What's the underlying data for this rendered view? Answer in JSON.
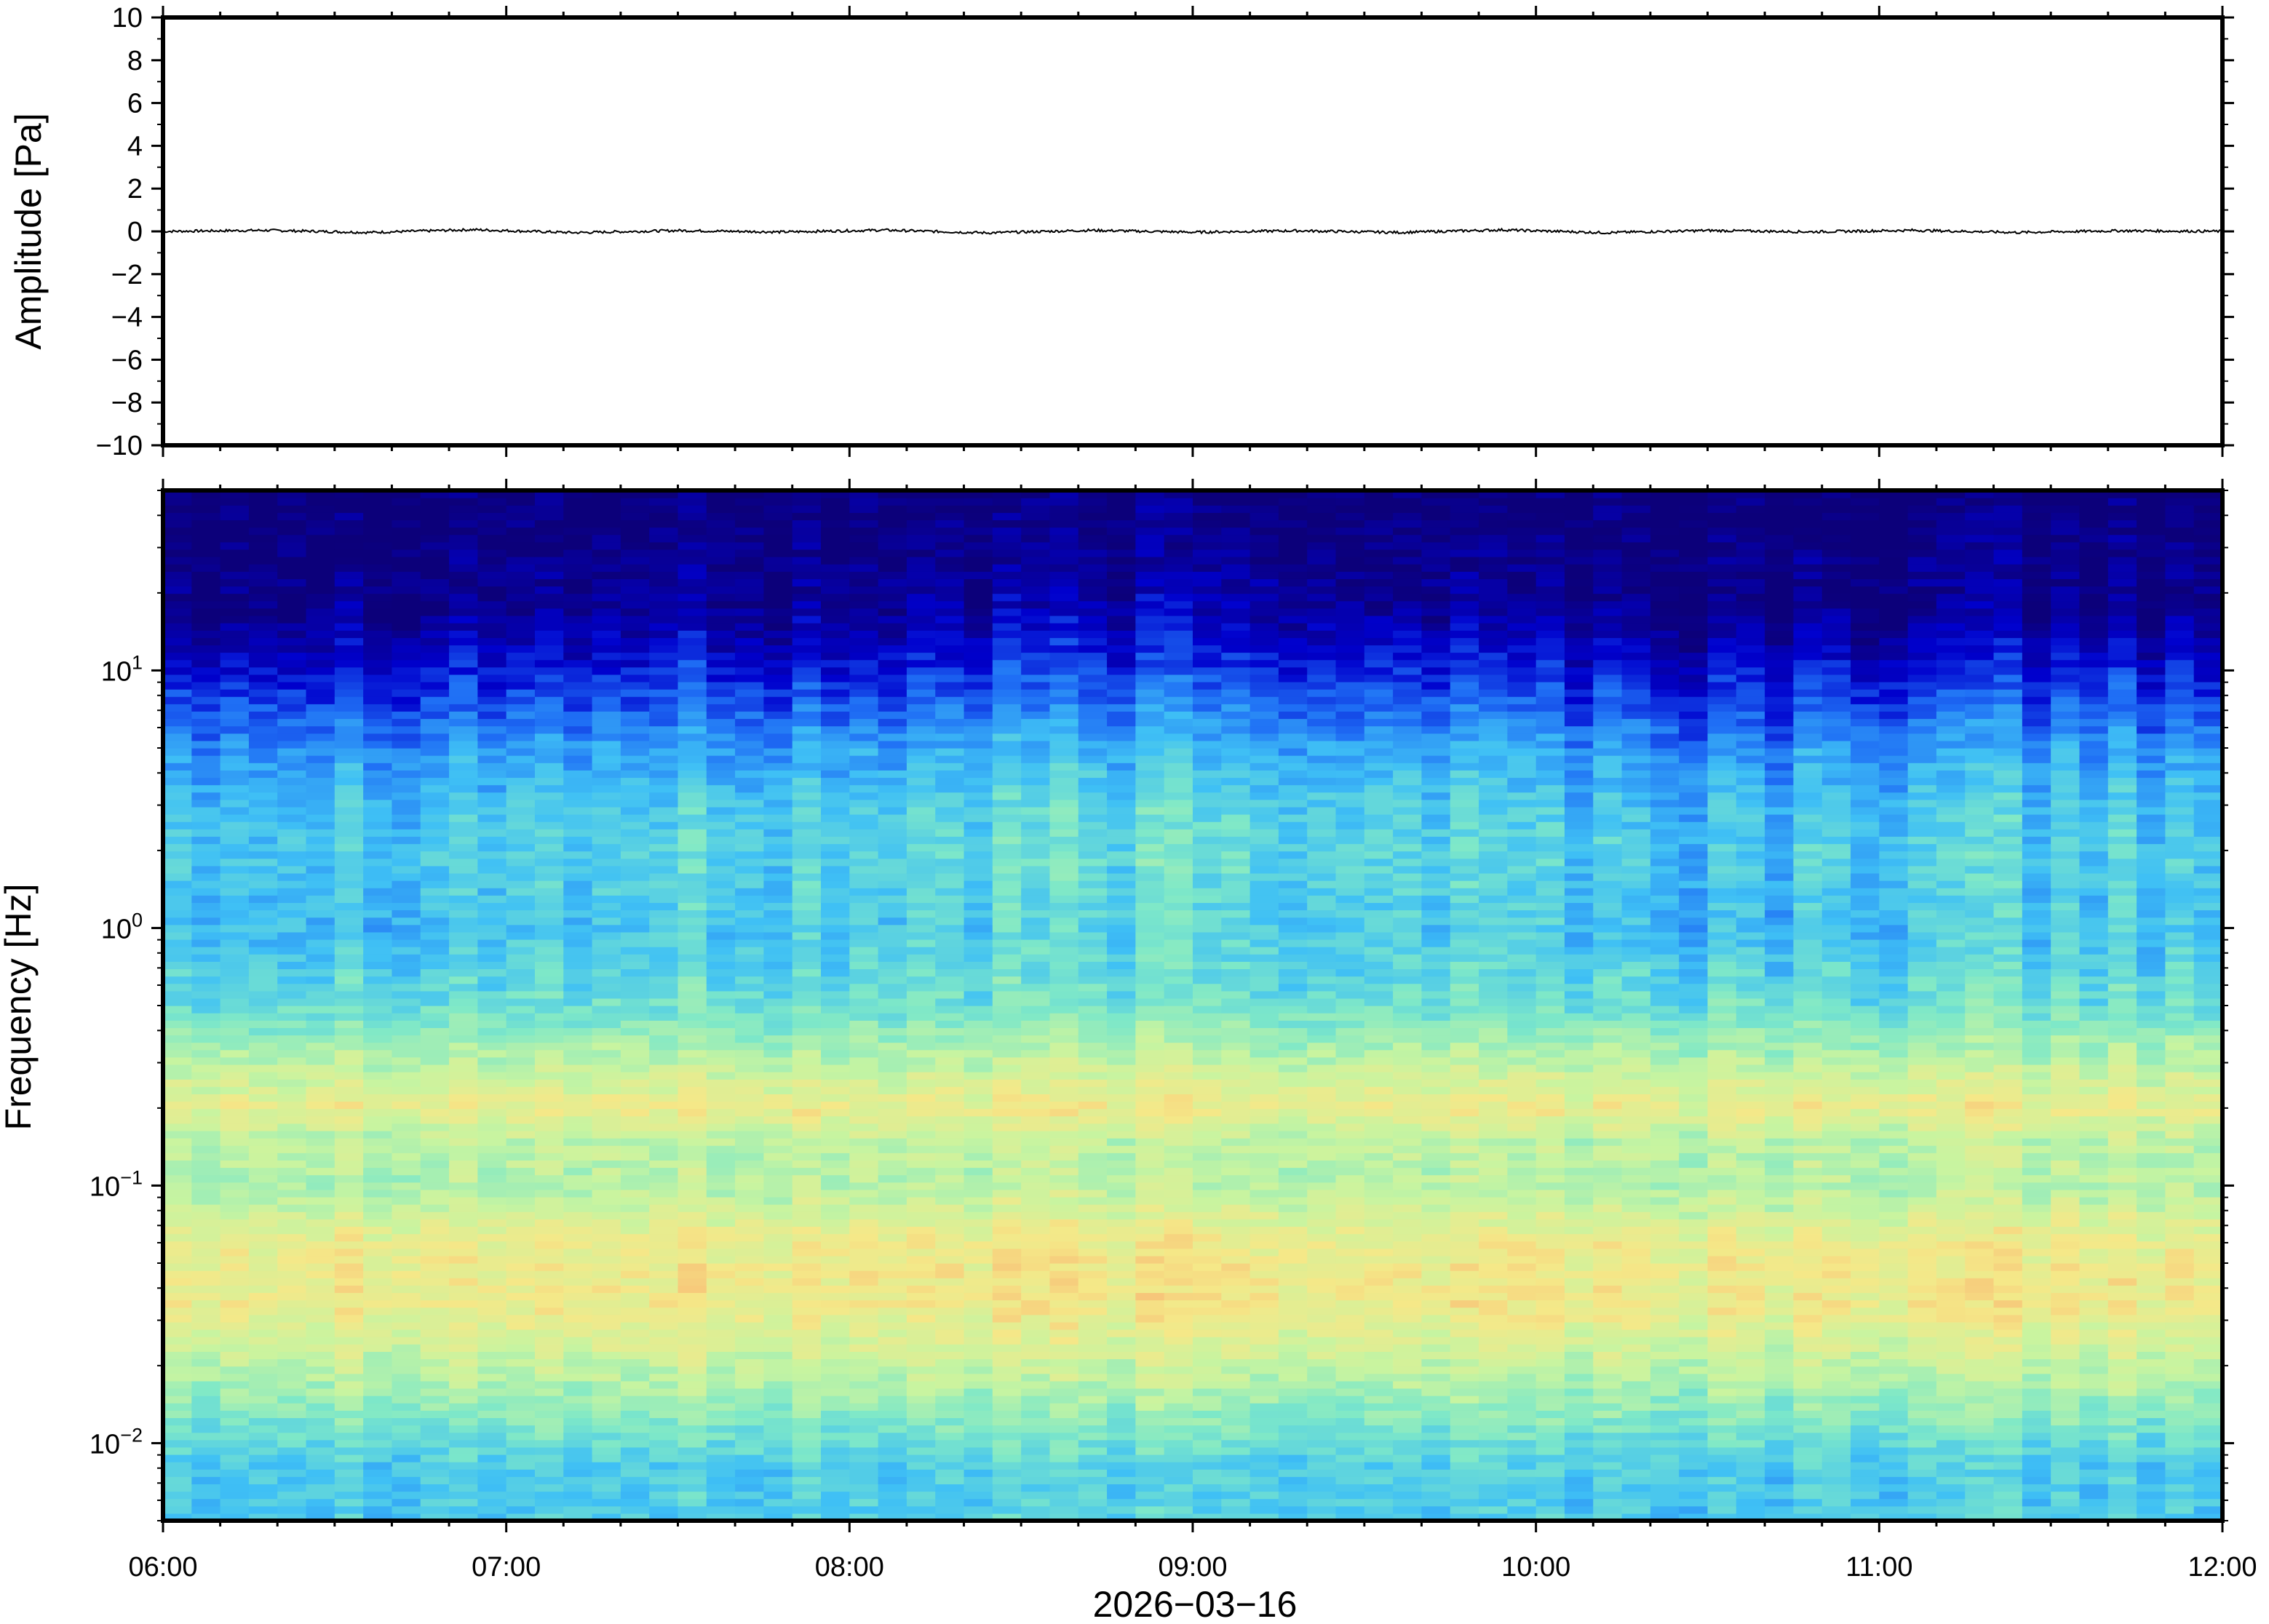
{
  "chart_data": [
    {
      "type": "line",
      "panel": "waveform",
      "ylabel": "Amplitude [Pa]",
      "ylim": [
        -10,
        10
      ],
      "yticks": [
        10,
        8,
        6,
        4,
        2,
        0,
        -2,
        -4,
        -6,
        -8,
        -10
      ],
      "ytick_labels": [
        "10",
        "8",
        "6",
        "4",
        "2",
        "0",
        "−2",
        "−4",
        "−6",
        "−8",
        "−10"
      ],
      "xlim": [
        "06:00",
        "12:00"
      ],
      "series": [
        {
          "values": [
            0.0,
            0.05,
            -0.05,
            0.08,
            -0.06,
            0.04,
            -0.03,
            0.06,
            -0.07,
            0.05,
            -0.04,
            0.03,
            -0.05,
            0.07,
            -0.06,
            0.04,
            -0.02,
            0.05,
            -0.05,
            0.03,
            0.0
          ]
        }
      ],
      "line_color": "#000000"
    },
    {
      "type": "heatmap",
      "panel": "spectrogram",
      "ylabel": "Frequency [Hz]",
      "yscale": "log",
      "ylim": [
        0.005,
        50
      ],
      "yticks": [
        0.01,
        0.1,
        1,
        10
      ],
      "ytick_labels": [
        {
          "base": "10",
          "exp": "−2"
        },
        {
          "base": "10",
          "exp": "−1"
        },
        {
          "base": "10",
          "exp": "0"
        },
        {
          "base": "10",
          "exp": "1"
        }
      ],
      "xlabel": "2026−03−16",
      "xlim": [
        "06:00",
        "12:00"
      ],
      "xticks": [
        "06:00",
        "07:00",
        "08:00",
        "09:00",
        "10:00",
        "11:00",
        "12:00"
      ],
      "colormap": "jet",
      "colormap_stops": [
        "#0c007a",
        "#0000cd",
        "#1f6ff5",
        "#3fc0f5",
        "#7ee8c8",
        "#c8f4a0",
        "#f5e888",
        "#f8b070"
      ],
      "power_profile": [
        {
          "freq": 0.005,
          "level": 3.3
        },
        {
          "freq": 0.008,
          "level": 3.3
        },
        {
          "freq": 0.013,
          "level": 4.2
        },
        {
          "freq": 0.02,
          "level": 5.0
        },
        {
          "freq": 0.035,
          "level": 5.9
        },
        {
          "freq": 0.06,
          "level": 5.8
        },
        {
          "freq": 0.1,
          "level": 4.8
        },
        {
          "freq": 0.15,
          "level": 4.9
        },
        {
          "freq": 0.2,
          "level": 5.8
        },
        {
          "freq": 0.3,
          "level": 4.9
        },
        {
          "freq": 0.5,
          "level": 3.8
        },
        {
          "freq": 1,
          "level": 3.2
        },
        {
          "freq": 2,
          "level": 3.4
        },
        {
          "freq": 3,
          "level": 3.2
        },
        {
          "freq": 5,
          "level": 2.6
        },
        {
          "freq": 8,
          "level": 1.7
        },
        {
          "freq": 12,
          "level": 0.9
        },
        {
          "freq": 18,
          "level": 0.3
        },
        {
          "freq": 50,
          "level": 0.0
        }
      ]
    }
  ]
}
